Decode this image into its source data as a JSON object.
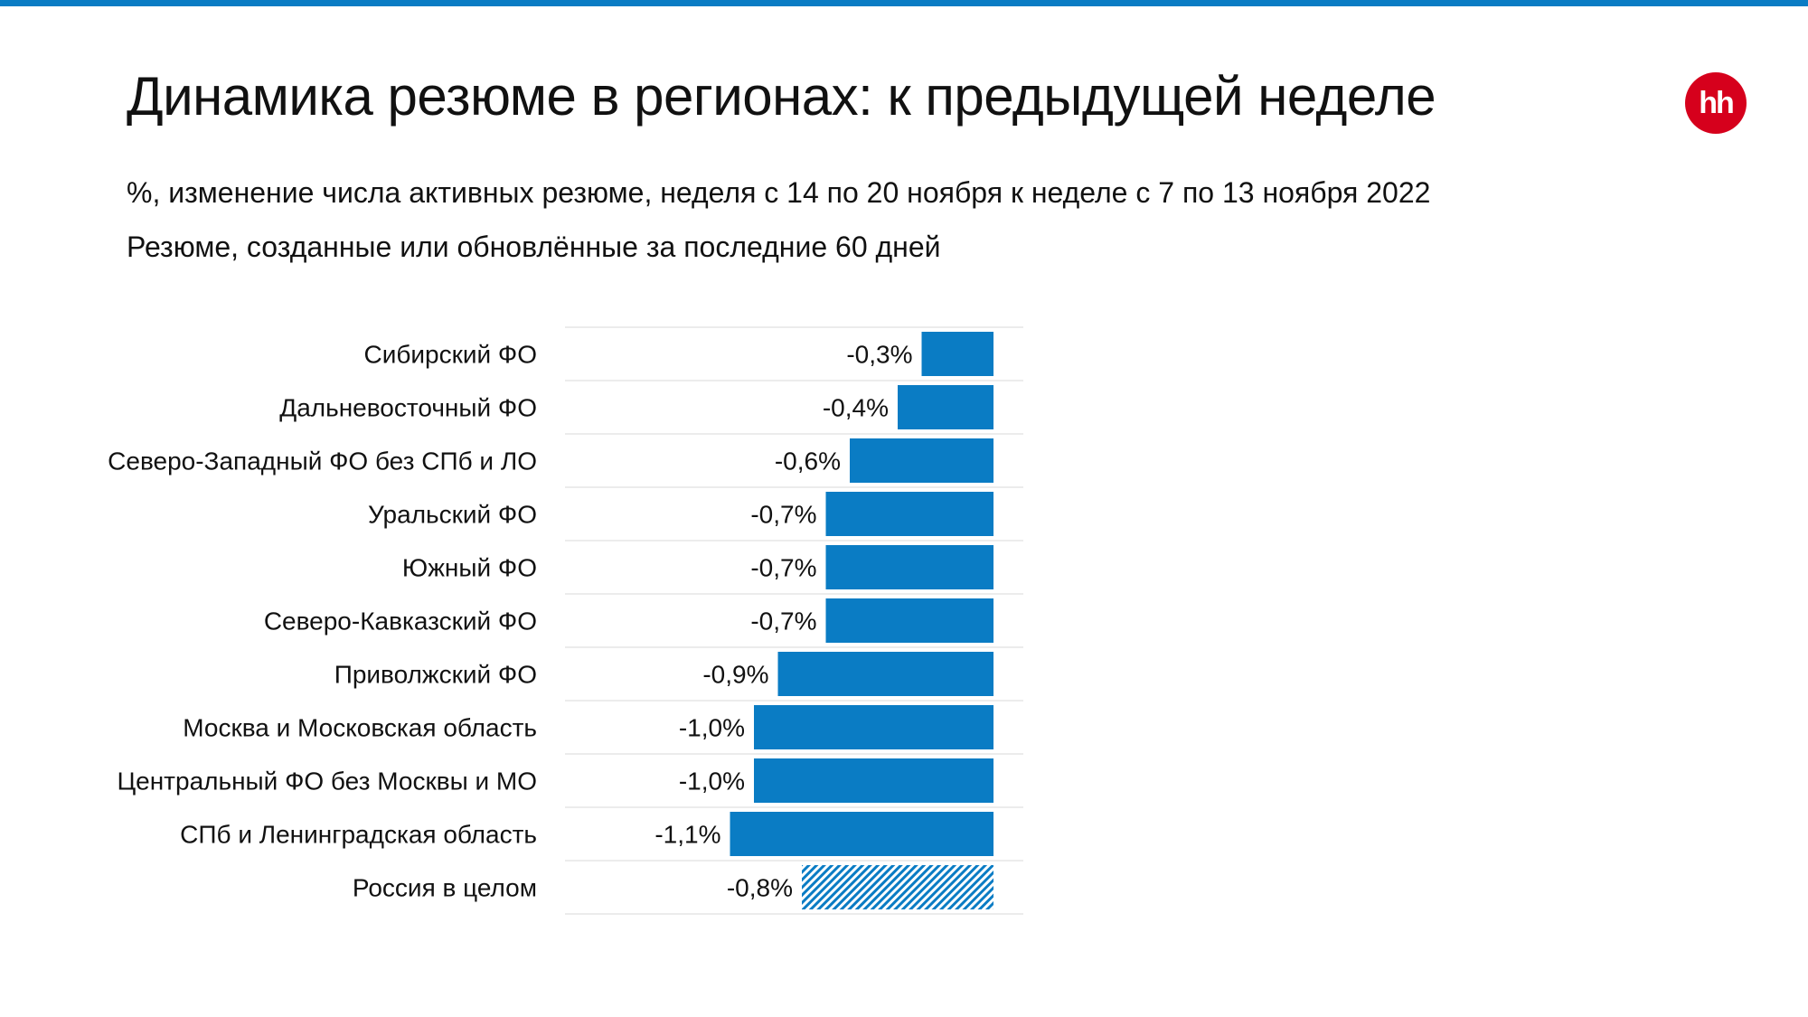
{
  "page": {
    "title": "Динамика резюме в регионах: к предыдущей неделе",
    "subtitle_1": "%, изменение числа активных резюме, неделя с 14 по 20 ноября к неделе с 7 по 13 ноября 2022",
    "subtitle_2": "Резюме, созданные или обновлённые за последние 60 дней",
    "logo_text": "hh",
    "logo_icon": "hh-logo-icon"
  },
  "colors": {
    "accent": "#0a7cc4",
    "bar": "#0a7cc4",
    "logo": "#d6001c",
    "rule": "#e6e6e6"
  },
  "chart_data": {
    "type": "bar",
    "orientation": "horizontal",
    "title": "",
    "xlabel": "",
    "ylabel": "",
    "xlim": [
      -1.3,
      0
    ],
    "grid": false,
    "legend": "none",
    "categories": [
      "Сибирский ФО",
      "Дальневосточный ФО",
      "Северо-Западный ФО без СПб и ЛО",
      "Уральский ФО",
      "Южный ФО",
      "Северо-Кавказский ФО",
      "Приволжский ФО",
      "Москва и Московская область",
      "Центральный ФО без Москвы и МО",
      "СПб и Ленинградская область",
      "Россия в целом"
    ],
    "values": [
      -0.3,
      -0.4,
      -0.6,
      -0.7,
      -0.7,
      -0.7,
      -0.9,
      -1.0,
      -1.0,
      -1.1,
      -0.8
    ],
    "data_labels": [
      "-0,3%",
      "-0,4%",
      "-0,6%",
      "-0,7%",
      "-0,7%",
      "-0,7%",
      "-0,9%",
      "-1,0%",
      "-1,0%",
      "-1,1%",
      "-0,8%"
    ],
    "hatched_categories": [
      "Россия в целом"
    ]
  }
}
